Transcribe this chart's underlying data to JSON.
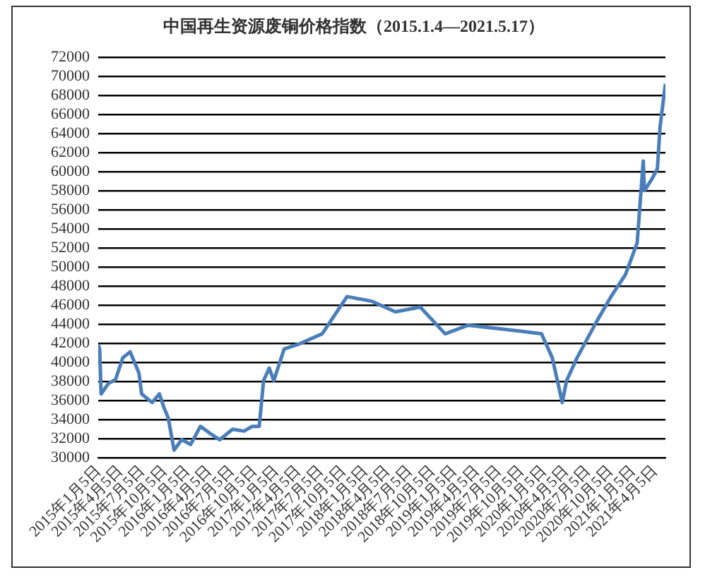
{
  "chart_data": {
    "type": "line",
    "title": "中国再生资源废铜价格指数（2015.1.4—2021.5.17）",
    "x": [
      "2015-01-04",
      "2015-01-10",
      "2015-01-16",
      "2015-02-15",
      "2015-03-16",
      "2015-04-15",
      "2015-05-15",
      "2015-06-20",
      "2015-07-01",
      "2015-08-13",
      "2015-09-12",
      "2015-09-30",
      "2015-10-18",
      "2015-11-11",
      "2015-12-12",
      "2016-01-18",
      "2016-02-27",
      "2016-04-10",
      "2016-05-16",
      "2016-07-08",
      "2016-08-24",
      "2016-09-26",
      "2016-10-25",
      "2016-11-12",
      "2016-12-05",
      "2016-12-24",
      "2017-02-04",
      "2017-04-03",
      "2017-07-10",
      "2017-10-20",
      "2018-01-31",
      "2018-05-06",
      "2018-08-16",
      "2018-11-26",
      "2019-03-01",
      "2019-06-12",
      "2019-09-22",
      "2019-12-26",
      "2020-02-08",
      "2020-03-20",
      "2020-04-07",
      "2020-05-20",
      "2020-08-06",
      "2020-10-06",
      "2020-12-04",
      "2021-01-21",
      "2021-02-15",
      "2021-02-20",
      "2021-03-22",
      "2021-04-14",
      "2021-04-25",
      "2021-05-17"
    ],
    "series": [
      {
        "color": "#4a7ebb",
        "values": [
          41900,
          41400,
          36700,
          37800,
          38200,
          40500,
          41100,
          38900,
          36700,
          35800,
          36700,
          35300,
          34200,
          30800,
          31900,
          31400,
          33300,
          32500,
          31900,
          33000,
          32800,
          33300,
          33300,
          38100,
          39400,
          38100,
          41400,
          41900,
          43000,
          46900,
          46400,
          45300,
          45800,
          43000,
          43900,
          43600,
          43300,
          43000,
          40500,
          35800,
          38100,
          40500,
          44200,
          46900,
          49200,
          52500,
          61100,
          58000,
          59200,
          60300,
          64700,
          69200
        ]
      }
    ],
    "xlim": [
      "2015-01-04",
      "2021-05-17"
    ],
    "xticks": [
      {
        "value": "2015-01-05",
        "label": "2015年1月5日"
      },
      {
        "value": "2015-04-05",
        "label": "2015年4月5日"
      },
      {
        "value": "2015-07-05",
        "label": "2015年7月5日"
      },
      {
        "value": "2015-10-05",
        "label": "2015年10月5日"
      },
      {
        "value": "2016-01-05",
        "label": "2016年1月5日"
      },
      {
        "value": "2016-04-05",
        "label": "2016年4月5日"
      },
      {
        "value": "2016-07-05",
        "label": "2016年7月5日"
      },
      {
        "value": "2016-10-05",
        "label": "2016年10月5日"
      },
      {
        "value": "2017-01-05",
        "label": "2017年1月5日"
      },
      {
        "value": "2017-04-05",
        "label": "2017年4月5日"
      },
      {
        "value": "2017-07-05",
        "label": "2017年7月5日"
      },
      {
        "value": "2017-10-05",
        "label": "2017年10月5日"
      },
      {
        "value": "2018-01-05",
        "label": "2018年1月5日"
      },
      {
        "value": "2018-04-05",
        "label": "2018年4月5日"
      },
      {
        "value": "2018-07-05",
        "label": "2018年7月5日"
      },
      {
        "value": "2018-10-05",
        "label": "2018年10月5日"
      },
      {
        "value": "2019-01-05",
        "label": "2019年1月5日"
      },
      {
        "value": "2019-04-05",
        "label": "2019年4月5日"
      },
      {
        "value": "2019-07-05",
        "label": "2019年7月5日"
      },
      {
        "value": "2019-10-05",
        "label": "2019年10月5日"
      },
      {
        "value": "2020-01-05",
        "label": "2020年1月5日"
      },
      {
        "value": "2020-04-05",
        "label": "2020年4月5日"
      },
      {
        "value": "2020-07-05",
        "label": "2020年7月5日"
      },
      {
        "value": "2020-10-05",
        "label": "2020年10月5日"
      },
      {
        "value": "2021-01-05",
        "label": "2021年1月5日"
      },
      {
        "value": "2021-04-05",
        "label": "2021年4月5日"
      }
    ],
    "ylim": [
      30000,
      72000
    ],
    "yticks": [
      30000,
      32000,
      34000,
      36000,
      38000,
      40000,
      42000,
      44000,
      46000,
      48000,
      50000,
      52000,
      54000,
      56000,
      58000,
      60000,
      62000,
      64000,
      66000,
      68000,
      70000,
      72000
    ],
    "grid": "y",
    "legend": false,
    "marker": "none",
    "line_style": "solid"
  }
}
